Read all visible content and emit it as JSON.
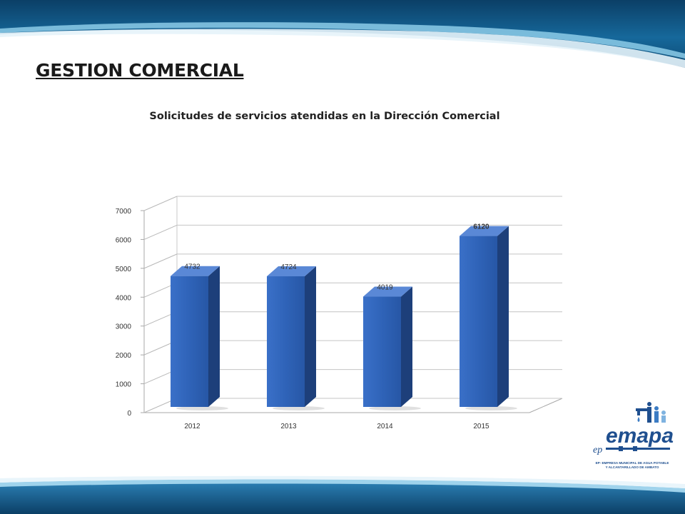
{
  "slide": {
    "heading": "GESTION COMERCIAL"
  },
  "colors": {
    "bar_front": "#2f63b8",
    "bar_side": "#1d3f7a",
    "bar_top": "#5a88d6",
    "band_dark": "#0f4f7d",
    "band_light": "#6fb3d8"
  },
  "chart_data": {
    "type": "bar",
    "title": "Solicitudes de servicios atendidas en la Dirección Comercial",
    "categories": [
      "2012",
      "2013",
      "2014",
      "2015"
    ],
    "values": [
      4732,
      4724,
      4019,
      6120
    ],
    "data_labels": [
      "4732",
      "4724",
      "4019",
      "6120"
    ],
    "ylim": [
      0,
      7000
    ],
    "yticks": [
      "0",
      "1000",
      "2000",
      "3000",
      "4000",
      "5000",
      "6000",
      "7000"
    ],
    "grid": true,
    "style": "3d-column"
  },
  "logo": {
    "icon": "emapa-logo",
    "prefix": "ep",
    "name": "emapa",
    "caption_line1": "EP- EMPRESA MUNICIPAL DE AGUA POTABLE",
    "caption_line2": "Y ALCANTARILLADO DE AMBATO"
  }
}
